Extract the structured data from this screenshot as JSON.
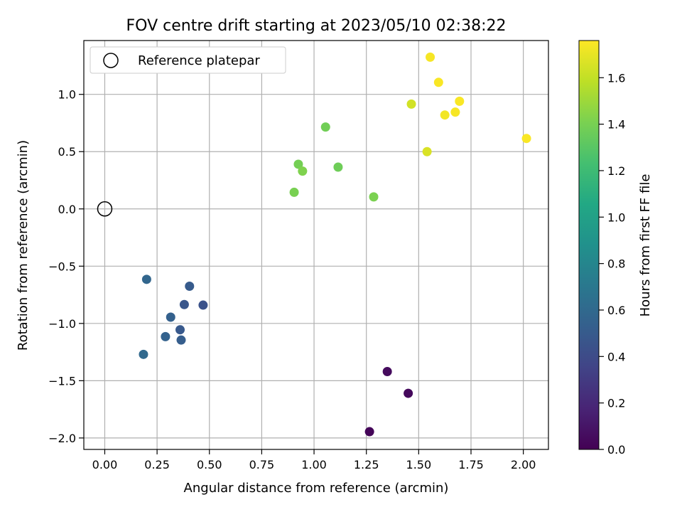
{
  "chart_data": {
    "type": "scatter",
    "title": "FOV centre drift starting at 2023/05/10 02:38:22",
    "xlabel": "Angular distance from reference (arcmin)",
    "ylabel": "Rotation from reference (arcmin)",
    "xlim": [
      -0.1,
      2.12
    ],
    "ylim": [
      -2.1,
      1.47
    ],
    "xticks": [
      0.0,
      0.25,
      0.5,
      0.75,
      1.0,
      1.25,
      1.5,
      1.75,
      2.0
    ],
    "xtick_labels": [
      "0.00",
      "0.25",
      "0.50",
      "0.75",
      "1.00",
      "1.25",
      "1.50",
      "1.75",
      "2.00"
    ],
    "yticks": [
      1.0,
      0.5,
      0.0,
      -0.5,
      -1.0,
      -1.5,
      -2.0
    ],
    "ytick_labels": [
      "1.0",
      "0.5",
      "0.0",
      "−0.5",
      "−1.0",
      "−1.5",
      "−2.0"
    ],
    "grid": true,
    "legend": {
      "placement": "top-left",
      "entries": [
        {
          "label": "Reference platepar",
          "marker": "open-circle"
        }
      ]
    },
    "reference_point": {
      "x": 0.0,
      "y": 0.0
    },
    "colorbar": {
      "label": "Hours from first FF file",
      "colormap": "viridis",
      "range": [
        0.0,
        1.76
      ],
      "ticks": [
        0.0,
        0.2,
        0.4,
        0.6,
        0.8,
        1.0,
        1.2,
        1.4,
        1.6
      ],
      "tick_labels": [
        "0.0",
        "0.2",
        "0.4",
        "0.6",
        "0.8",
        "1.0",
        "1.2",
        "1.4",
        "1.6"
      ]
    },
    "points": [
      {
        "x": 1.35,
        "y": -1.42,
        "hours": 0.05
      },
      {
        "x": 1.45,
        "y": -1.61,
        "hours": 0.04
      },
      {
        "x": 1.265,
        "y": -1.945,
        "hours": 0.02
      },
      {
        "x": 0.2,
        "y": -0.615,
        "hours": 0.58
      },
      {
        "x": 0.405,
        "y": -0.675,
        "hours": 0.5
      },
      {
        "x": 0.38,
        "y": -0.835,
        "hours": 0.47
      },
      {
        "x": 0.47,
        "y": -0.84,
        "hours": 0.44
      },
      {
        "x": 0.315,
        "y": -0.945,
        "hours": 0.54
      },
      {
        "x": 0.36,
        "y": -1.055,
        "hours": 0.49
      },
      {
        "x": 0.29,
        "y": -1.115,
        "hours": 0.55
      },
      {
        "x": 0.365,
        "y": -1.145,
        "hours": 0.52
      },
      {
        "x": 0.185,
        "y": -1.27,
        "hours": 0.6
      },
      {
        "x": 0.905,
        "y": 0.145,
        "hours": 1.4
      },
      {
        "x": 0.925,
        "y": 0.39,
        "hours": 1.39
      },
      {
        "x": 0.945,
        "y": 0.33,
        "hours": 1.42
      },
      {
        "x": 1.055,
        "y": 0.715,
        "hours": 1.38
      },
      {
        "x": 1.115,
        "y": 0.365,
        "hours": 1.37
      },
      {
        "x": 1.285,
        "y": 0.105,
        "hours": 1.41
      },
      {
        "x": 1.465,
        "y": 0.915,
        "hours": 1.64
      },
      {
        "x": 1.54,
        "y": 0.5,
        "hours": 1.66
      },
      {
        "x": 1.555,
        "y": 1.325,
        "hours": 1.74
      },
      {
        "x": 1.595,
        "y": 1.105,
        "hours": 1.75
      },
      {
        "x": 1.625,
        "y": 0.82,
        "hours": 1.73
      },
      {
        "x": 1.675,
        "y": 0.845,
        "hours": 1.74
      },
      {
        "x": 1.695,
        "y": 0.94,
        "hours": 1.75
      },
      {
        "x": 2.015,
        "y": 0.615,
        "hours": 1.75
      }
    ]
  }
}
